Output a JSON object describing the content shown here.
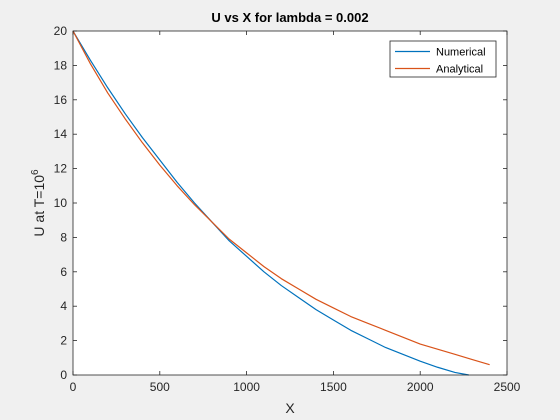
{
  "chart_data": {
    "type": "line",
    "title": "U vs X for lambda = 0.002",
    "xlabel": "X",
    "ylabel_main": "U at T=10",
    "ylabel_sup": "6",
    "xlim": [
      0,
      2500
    ],
    "ylim": [
      0,
      20
    ],
    "xticks": [
      "0",
      "500",
      "1000",
      "1500",
      "2000",
      "2500"
    ],
    "yticks": [
      "0",
      "2",
      "4",
      "6",
      "8",
      "10",
      "12",
      "14",
      "16",
      "18",
      "20"
    ],
    "grid": false,
    "legend_position": "top-right",
    "series": [
      {
        "name": "Numerical",
        "color": "#0072BD",
        "x": [
          0,
          100,
          200,
          300,
          400,
          500,
          600,
          700,
          800,
          900,
          1000,
          1100,
          1200,
          1300,
          1400,
          1500,
          1600,
          1700,
          1800,
          1900,
          2000,
          2100,
          2200,
          2280
        ],
        "y": [
          20.0,
          18.3,
          16.7,
          15.2,
          13.8,
          12.5,
          11.2,
          10.0,
          8.9,
          7.8,
          6.9,
          6.0,
          5.2,
          4.5,
          3.8,
          3.2,
          2.6,
          2.1,
          1.6,
          1.2,
          0.8,
          0.45,
          0.15,
          0.0
        ]
      },
      {
        "name": "Analytical",
        "color": "#D95319",
        "x": [
          0,
          100,
          200,
          300,
          400,
          500,
          600,
          700,
          800,
          900,
          1000,
          1100,
          1200,
          1300,
          1400,
          1500,
          1600,
          1700,
          1800,
          1900,
          2000,
          2100,
          2200,
          2300,
          2400
        ],
        "y": [
          20.0,
          18.1,
          16.4,
          14.9,
          13.5,
          12.2,
          11.0,
          9.9,
          8.9,
          7.9,
          7.1,
          6.3,
          5.6,
          5.0,
          4.4,
          3.9,
          3.4,
          3.0,
          2.6,
          2.2,
          1.8,
          1.5,
          1.2,
          0.9,
          0.6
        ]
      }
    ]
  }
}
